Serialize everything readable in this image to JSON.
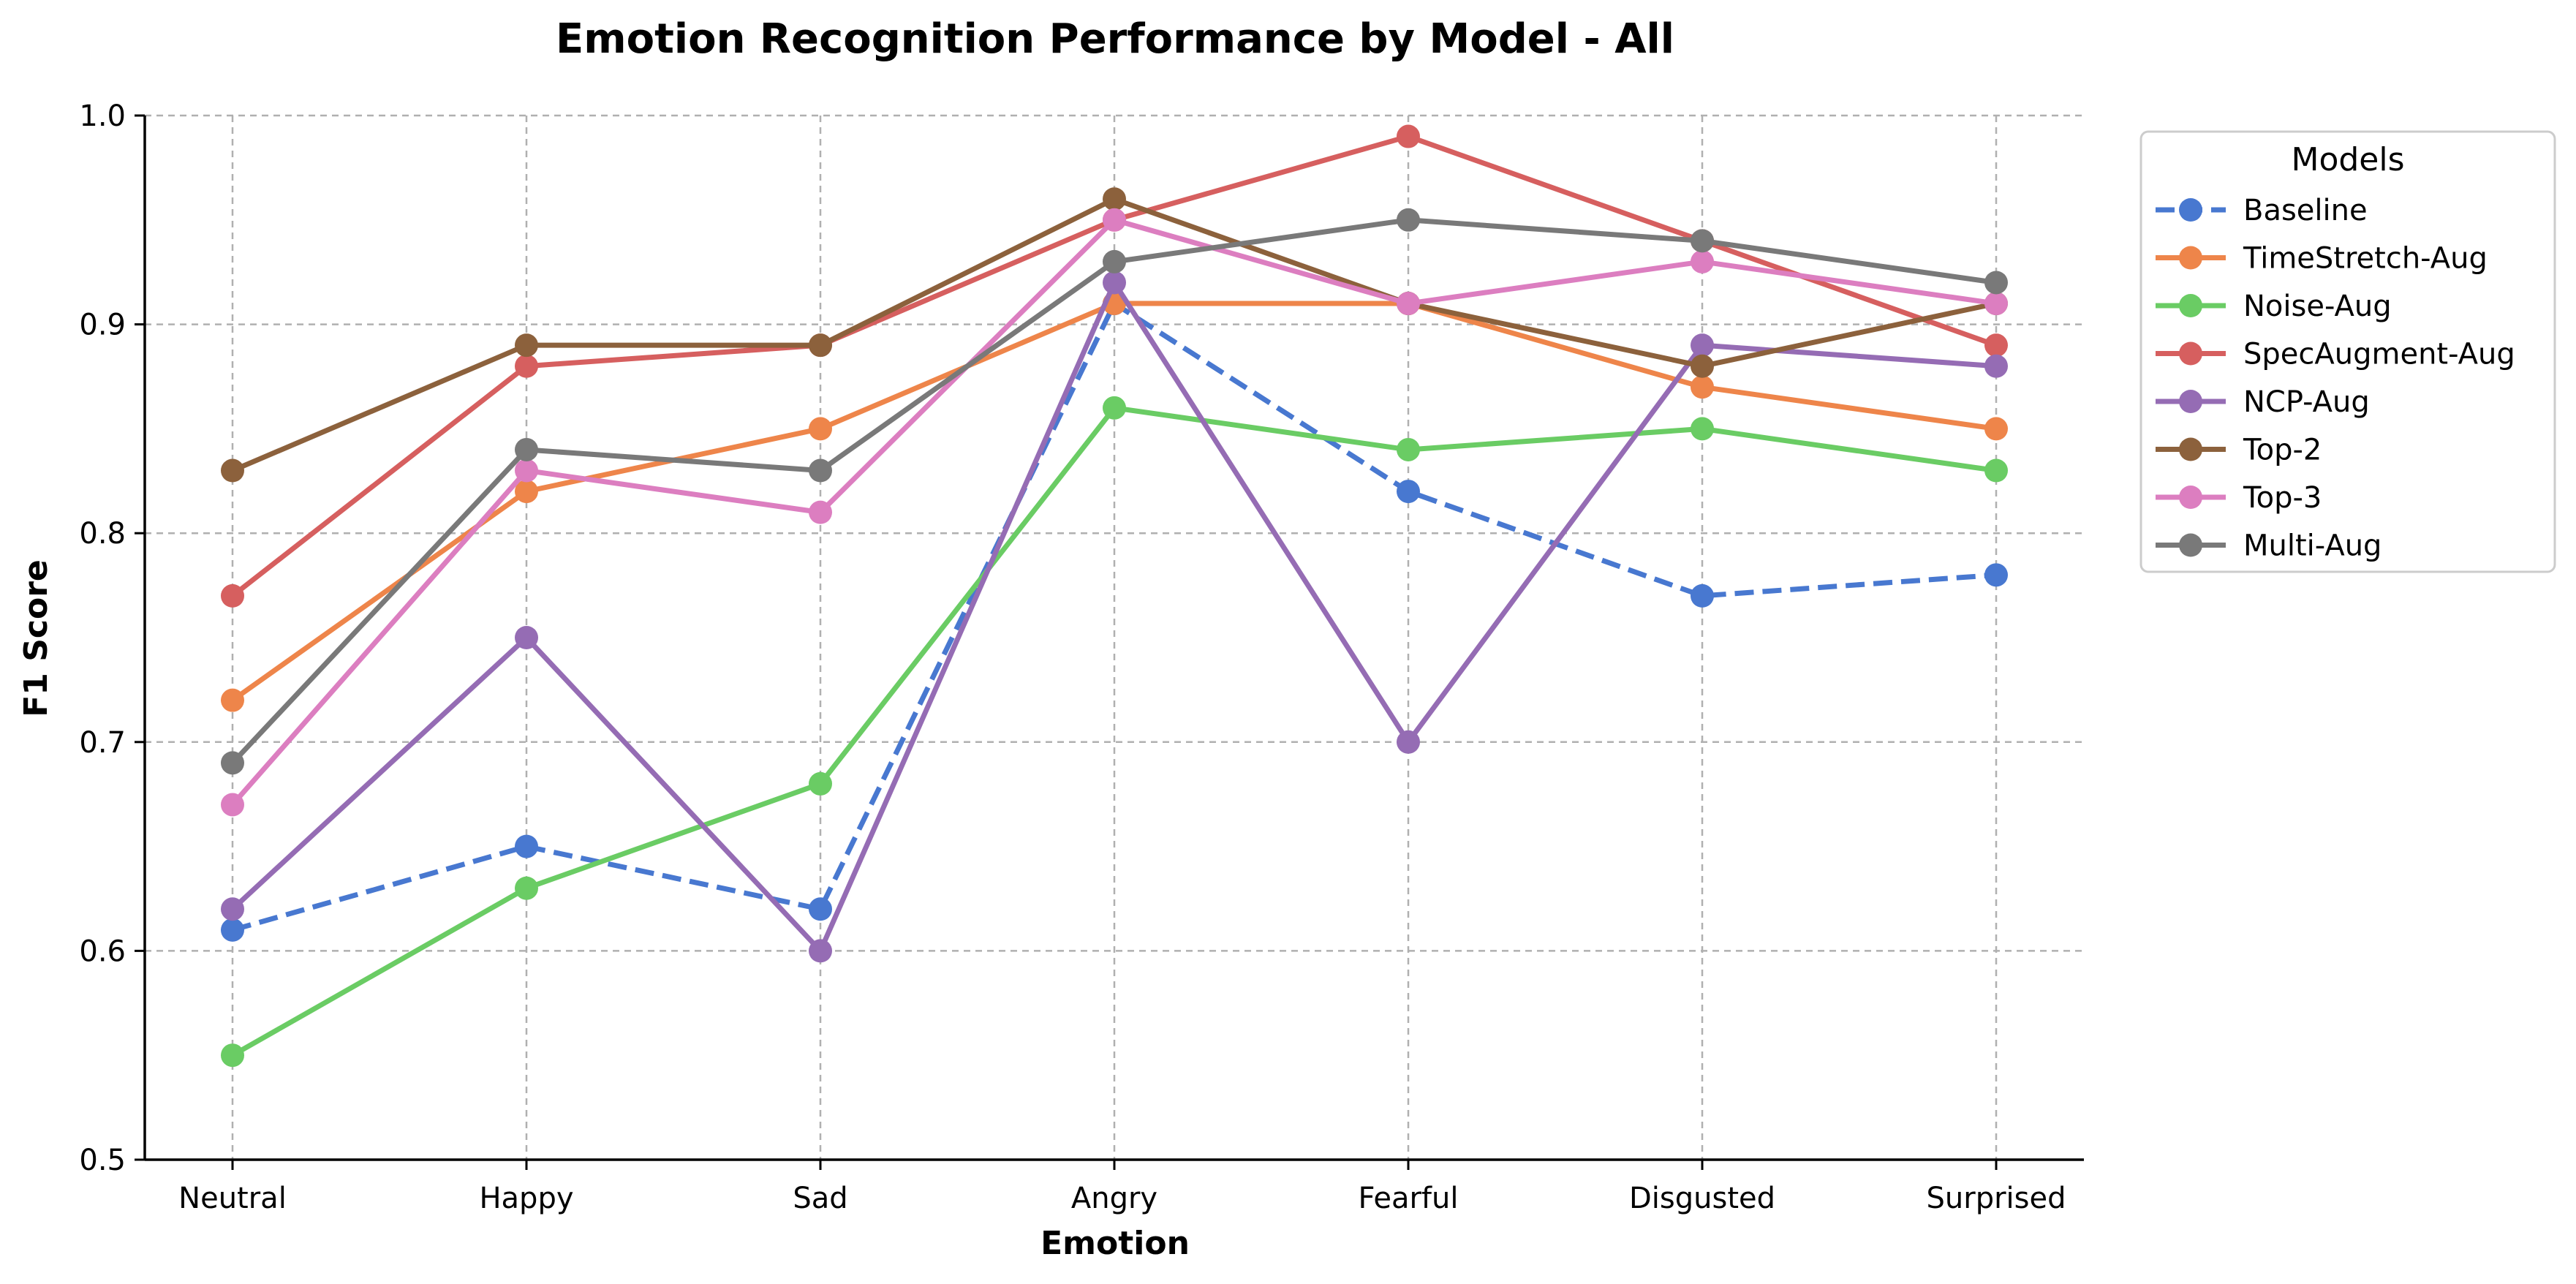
{
  "chart_data": {
    "type": "line",
    "title": "Emotion Recognition Performance by Model - All",
    "xlabel": "Emotion",
    "ylabel": "F1 Score",
    "ylim": [
      0.5,
      1.0
    ],
    "yticks": [
      "0.5",
      "0.6",
      "0.7",
      "0.8",
      "0.9",
      "1.0"
    ],
    "grid": true,
    "legend_title": "Models",
    "legend_position": "upper-right-outside",
    "categories": [
      "Neutral",
      "Happy",
      "Sad",
      "Angry",
      "Fearful",
      "Disgusted",
      "Surprised"
    ],
    "series": [
      {
        "name": "Baseline",
        "color": "#4878d0",
        "dashed": true,
        "values": [
          0.61,
          0.65,
          0.62,
          0.91,
          0.82,
          0.77,
          0.78
        ]
      },
      {
        "name": "TimeStretch-Aug",
        "color": "#ee854a",
        "dashed": false,
        "values": [
          0.72,
          0.82,
          0.85,
          0.91,
          0.91,
          0.87,
          0.85
        ]
      },
      {
        "name": "Noise-Aug",
        "color": "#6acc64",
        "dashed": false,
        "values": [
          0.55,
          0.63,
          0.68,
          0.86,
          0.84,
          0.85,
          0.83
        ]
      },
      {
        "name": "SpecAugment-Aug",
        "color": "#d65f5f",
        "dashed": false,
        "values": [
          0.77,
          0.88,
          0.89,
          0.95,
          0.99,
          0.94,
          0.89
        ]
      },
      {
        "name": "NCP-Aug",
        "color": "#956cb4",
        "dashed": false,
        "values": [
          0.62,
          0.75,
          0.6,
          0.92,
          0.7,
          0.89,
          0.88
        ]
      },
      {
        "name": "Top-2",
        "color": "#8c613c",
        "dashed": false,
        "values": [
          0.83,
          0.89,
          0.89,
          0.96,
          0.91,
          0.88,
          0.91
        ]
      },
      {
        "name": "Top-3",
        "color": "#dc7ec0",
        "dashed": false,
        "values": [
          0.67,
          0.83,
          0.81,
          0.95,
          0.91,
          0.93,
          0.91
        ]
      },
      {
        "name": "Multi-Aug",
        "color": "#797979",
        "dashed": false,
        "values": [
          0.69,
          0.84,
          0.83,
          0.93,
          0.95,
          0.94,
          0.92
        ]
      }
    ]
  }
}
